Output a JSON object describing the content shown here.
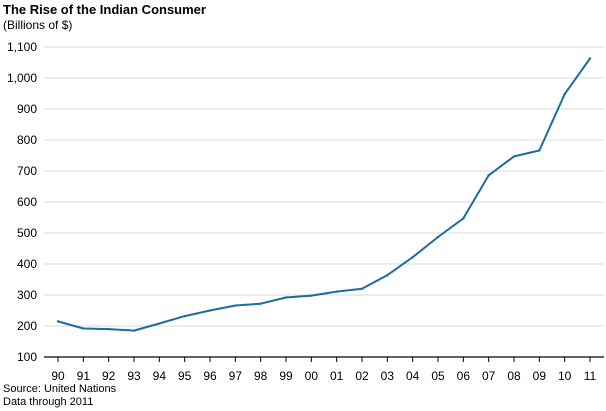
{
  "header": {
    "title": "The Rise of the Indian Consumer",
    "subtitle": "(Billions of $)"
  },
  "footer": {
    "source": "Source: United Nations",
    "note": "Data through 2011"
  },
  "chart_data": {
    "type": "line",
    "title": "The Rise of the Indian Consumer",
    "subtitle": "(Billions of $)",
    "xlabel": "",
    "ylabel": "",
    "categories": [
      "90",
      "91",
      "92",
      "93",
      "94",
      "95",
      "96",
      "97",
      "98",
      "99",
      "00",
      "01",
      "02",
      "03",
      "04",
      "05",
      "06",
      "07",
      "08",
      "09",
      "10",
      "11"
    ],
    "series": [
      {
        "values": [
          215,
          192,
          190,
          185,
          208,
          232,
          250,
          266,
          272,
          292,
          298,
          311,
          320,
          364,
          422,
          487,
          547,
          686,
          747,
          766,
          948,
          1063
        ],
        "color": "#1a6e9c"
      }
    ],
    "yticks": [
      "100",
      "200",
      "300",
      "400",
      "500",
      "600",
      "700",
      "800",
      "900",
      "1,000",
      "1,100"
    ],
    "ylim": [
      100,
      1100
    ],
    "grid": true,
    "legend": "none",
    "colors": {
      "line": "#1a6e9c",
      "grid": "#d9d9d9",
      "axis": "#000000"
    }
  }
}
